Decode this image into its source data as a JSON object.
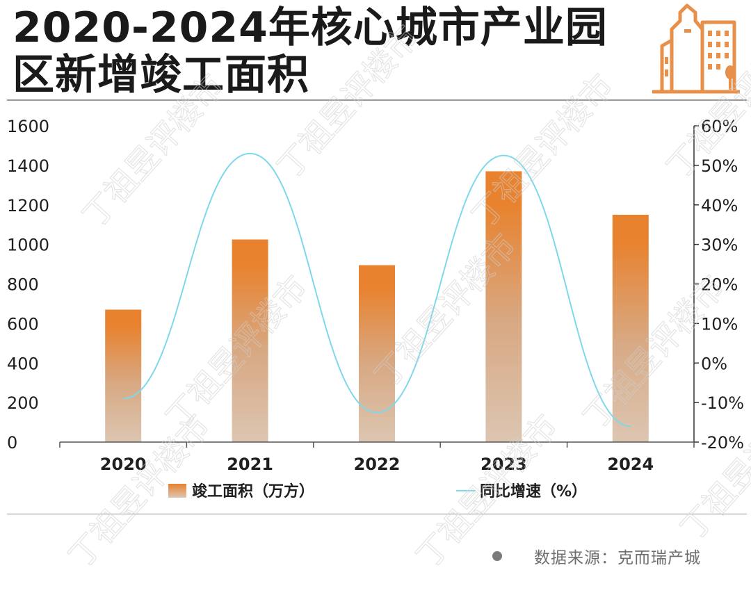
{
  "title": "2020-2024年核心城市产业园区新增竣工面积",
  "source": {
    "text": "数据来源：克而瑞产城"
  },
  "watermark": {
    "text": "丁祖昱评楼市"
  },
  "colors": {
    "bar_top": "#E8822E",
    "bar_bottom": "#DCC6B2",
    "line": "#7FD8EA",
    "logo": "#E8904A",
    "axis": "#333333"
  },
  "chart_data": {
    "type": "bar",
    "categories": [
      "2020",
      "2021",
      "2022",
      "2023",
      "2024"
    ],
    "series": [
      {
        "name": "竣工面积（万方）",
        "type": "bar",
        "axis": "left",
        "values": [
          670,
          1025,
          895,
          1370,
          1150
        ]
      },
      {
        "name": "同比增速（%）",
        "type": "line",
        "axis": "right",
        "values": [
          -9,
          53,
          -12.5,
          52.5,
          -16
        ]
      }
    ],
    "y_left": {
      "ylim": [
        0,
        1600
      ],
      "ticks": [
        "0",
        "200",
        "400",
        "600",
        "800",
        "1000",
        "1200",
        "1400",
        "1600"
      ]
    },
    "y_right": {
      "ylim": [
        -20,
        60
      ],
      "ticks": [
        "-20%",
        "-10%",
        "0%",
        "10%",
        "20%",
        "30%",
        "40%",
        "50%",
        "60%"
      ]
    },
    "legend_position": "bottom",
    "grid": false
  }
}
